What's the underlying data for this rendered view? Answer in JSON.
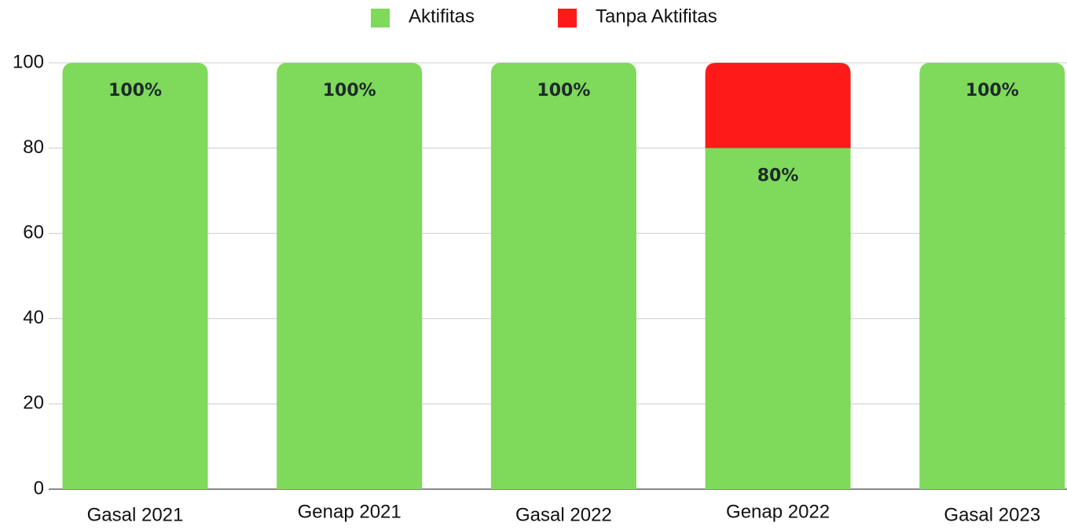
{
  "chart_data": {
    "type": "stacked_bar",
    "categories": [
      "Gasal 2021",
      "Genap 2021",
      "Gasal 2022",
      "Genap 2022",
      "Gasal 2023"
    ],
    "series": [
      {
        "name": "Aktifitas",
        "color": "#7fd95b",
        "values": [
          100,
          100,
          100,
          80,
          100
        ],
        "value_labels": [
          "100%",
          "100%",
          "100%",
          "80%",
          "100%"
        ]
      },
      {
        "name": "Tanpa Aktifitas",
        "color": "#ff1a1a",
        "values": [
          0,
          0,
          0,
          20,
          0
        ]
      }
    ],
    "ylim": [
      0,
      100
    ],
    "yticks": [
      0,
      20,
      40,
      60,
      80,
      100
    ],
    "grid": true,
    "legend": "top"
  }
}
